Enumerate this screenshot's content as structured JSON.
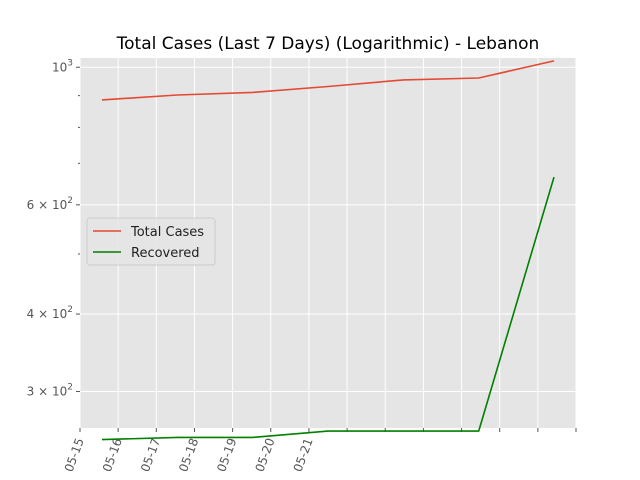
{
  "chart_data": {
    "type": "line",
    "title": "Total Cases (Last 7 Days) (Logarithmic) - Lebanon",
    "xlabel": "",
    "ylabel": "",
    "y_scale": "log",
    "ylim": [
      262,
      1035
    ],
    "grid": true,
    "legend_position": "center-left",
    "x_tick_labels": [
      "05-15",
      "05-16",
      "05-17",
      "05-18",
      "05-19",
      "05-20",
      "05-21"
    ],
    "y_tick_labels": [
      {
        "value": 1000,
        "base": "10",
        "exp": "3"
      },
      {
        "value": 600,
        "base": "6 × 10",
        "exp": "2"
      },
      {
        "value": 400,
        "base": "4 × 10",
        "exp": "2"
      },
      {
        "value": 300,
        "base": "3 × 10",
        "exp": "2"
      }
    ],
    "x": [
      "2020-05-15",
      "2020-05-16",
      "2020-05-17",
      "2020-05-18",
      "2020-05-19",
      "2020-05-20",
      "2020-05-21"
    ],
    "series": [
      {
        "name": "Total Cases",
        "color": "#e24a33",
        "values": [
          886,
          902,
          911,
          931,
          954,
          961,
          1024
        ]
      },
      {
        "name": "Recovered",
        "color": "#008000",
        "values": [
          251,
          253,
          253,
          259,
          259,
          259,
          665
        ]
      }
    ]
  }
}
